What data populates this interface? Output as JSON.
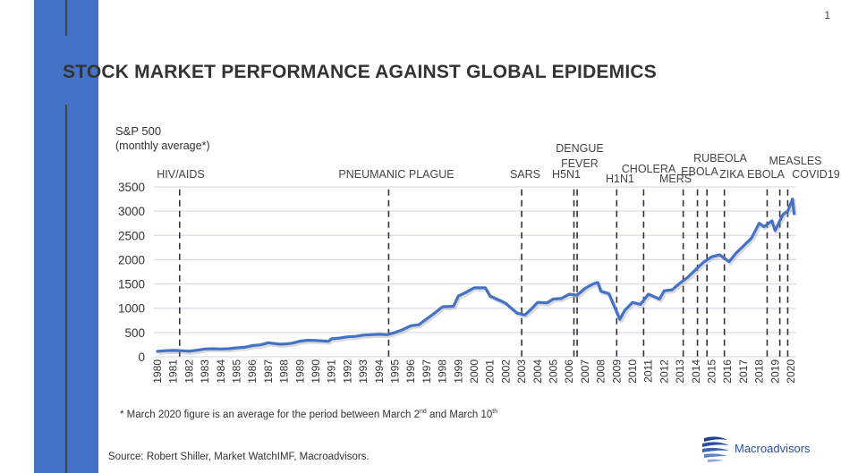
{
  "page_number": "1",
  "title": "STOCK MARKET PERFORMANCE AGAINST GLOBAL EPIDEMICS",
  "footnote": {
    "text_before": "* March 2020 figure is an average for the period between March 2",
    "sup1": "nd",
    "text_middle": " and March 10",
    "sup2": "th"
  },
  "source": "Source: Robert Shiller, Market WatchIMF, Macroadvisors.",
  "logo": {
    "text": "Macroadvisors"
  },
  "colors": {
    "accent_bar": "#4472c4",
    "line": "#4472c4",
    "grid": "#d9dde8",
    "event_line": "#333333"
  },
  "chart_data": {
    "type": "line",
    "title": "",
    "ylabel": "S&P 500",
    "ylabel_sub": "(monthly average*)",
    "xlabel": "",
    "xlim": [
      1980,
      2020.2
    ],
    "ylim": [
      0,
      3500
    ],
    "yticks": [
      0,
      500,
      1000,
      1500,
      2000,
      2500,
      3000,
      3500
    ],
    "xticks": [
      1980,
      1981,
      1982,
      1983,
      1984,
      1985,
      1986,
      1987,
      1988,
      1989,
      1990,
      1991,
      1992,
      1993,
      1994,
      1995,
      1996,
      1997,
      1998,
      1999,
      2000,
      2001,
      2002,
      2003,
      2004,
      2005,
      2006,
      2007,
      2008,
      2009,
      2010,
      2011,
      2012,
      2013,
      2014,
      2015,
      2016,
      2017,
      2018,
      2019,
      2020
    ],
    "grid": true,
    "series": [
      {
        "x": [
          1980,
          1980.5,
          1981,
          1981.5,
          1982,
          1982.6,
          1983,
          1983.5,
          1984,
          1984.5,
          1985,
          1985.5,
          1986,
          1986.5,
          1987,
          1987.7,
          1988,
          1988.5,
          1989,
          1989.5,
          1990,
          1990.8,
          1991,
          1991.5,
          1992,
          1992.5,
          1993,
          1993.5,
          1994,
          1994.5,
          1995,
          1995.5,
          1996,
          1996.5,
          1997,
          1997.5,
          1998,
          1998.7,
          1999,
          1999.5,
          2000,
          2000.7,
          2001,
          2001.7,
          2002,
          2002.7,
          2003.2,
          2003.6,
          2004,
          2004.6,
          2005,
          2005.5,
          2006,
          2006.5,
          2007,
          2007.5,
          2007.8,
          2008,
          2008.5,
          2008.9,
          2009.2,
          2009.5,
          2010,
          2010.5,
          2011,
          2011.7,
          2012,
          2012.5,
          2013,
          2013.5,
          2014,
          2014.5,
          2015,
          2015.5,
          2016.1,
          2016.5,
          2017,
          2017.5,
          2018,
          2018.3,
          2018.8,
          2019,
          2019.5,
          2019.8,
          2020.1,
          2020.2
        ],
        "values": [
          110,
          125,
          130,
          125,
          115,
          140,
          160,
          165,
          160,
          165,
          185,
          195,
          230,
          245,
          290,
          260,
          260,
          280,
          320,
          340,
          335,
          320,
          370,
          385,
          410,
          420,
          445,
          455,
          465,
          455,
          500,
          560,
          640,
          660,
          780,
          900,
          1030,
          1040,
          1250,
          1330,
          1420,
          1420,
          1250,
          1150,
          1100,
          900,
          860,
          980,
          1120,
          1110,
          1190,
          1200,
          1290,
          1270,
          1410,
          1500,
          1530,
          1350,
          1300,
          1000,
          770,
          950,
          1120,
          1080,
          1290,
          1190,
          1360,
          1380,
          1520,
          1640,
          1800,
          1950,
          2060,
          2100,
          1960,
          2120,
          2280,
          2440,
          2750,
          2680,
          2800,
          2600,
          2930,
          3000,
          3250,
          2950
        ]
      }
    ],
    "events": [
      {
        "label": "HIV/AIDS",
        "year": 1981.4
      },
      {
        "label": "PNEUMANIC PLAGUE",
        "year": 1994.6
      },
      {
        "label": "SARS",
        "year": 2003.0
      },
      {
        "label": "H5N1",
        "year": 2006.3
      },
      {
        "label": "DENGUE FEVER",
        "label_lines": [
          "DENGUE",
          "FEVER"
        ],
        "year": 2006.5
      },
      {
        "label": "H1N1",
        "year": 2009.0
      },
      {
        "label": "CHOLERA",
        "year": 2010.7
      },
      {
        "label": "MERS",
        "year": 2013.2
      },
      {
        "label": "EBOLA",
        "year": 2014.1
      },
      {
        "label": "RUBEOLA",
        "year": 2014.7
      },
      {
        "label": "ZIKA",
        "year": 2015.8
      },
      {
        "label": "EBOLA",
        "year": 2018.5
      },
      {
        "label": "MEASLES",
        "year": 2019.3
      },
      {
        "label": "COVID19",
        "year": 2019.8
      }
    ]
  }
}
